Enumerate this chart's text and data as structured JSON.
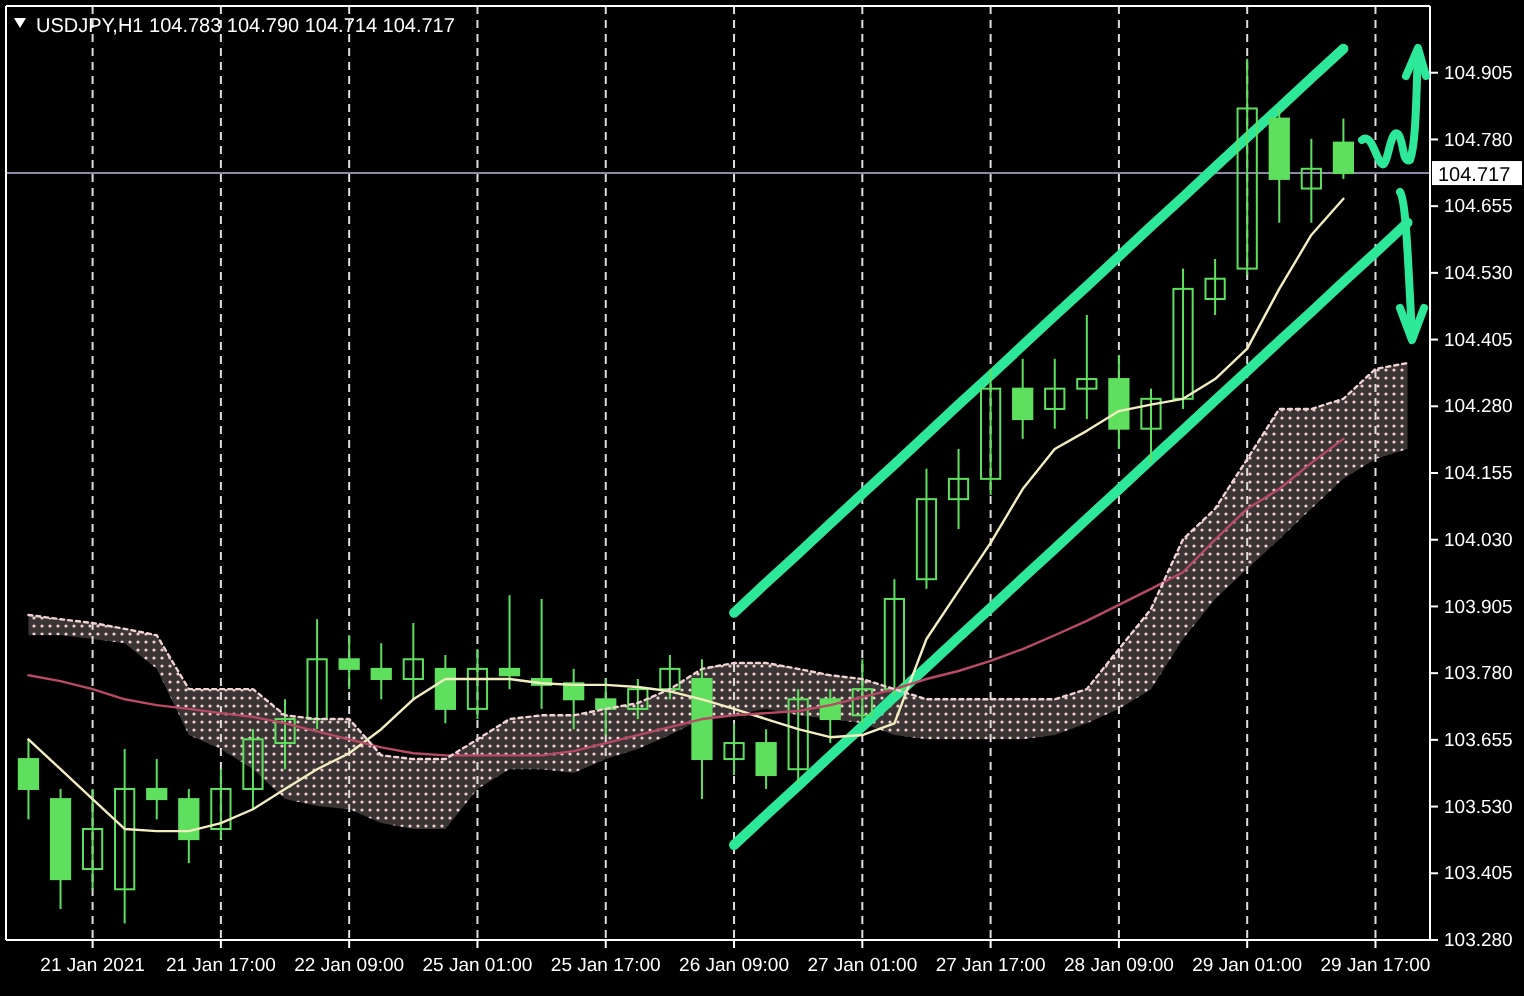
{
  "chart_data": {
    "type": "candlestick",
    "title": "USDJPY,H1 104.783 104.790 104.714 104.717",
    "categories": [
      null,
      null,
      "21 Jan 2021",
      null,
      null,
      null,
      "21 Jan 17:00",
      null,
      null,
      null,
      "22 Jan 09:00",
      null,
      null,
      null,
      "25 Jan 01:00",
      null,
      null,
      null,
      "25 Jan 17:00",
      null,
      null,
      null,
      "26 Jan 09:00",
      null,
      null,
      null,
      "27 Jan 01:00",
      null,
      null,
      null,
      "27 Jan 17:00",
      null,
      null,
      null,
      "28 Jan 09:00",
      null,
      null,
      null,
      "29 Jan 01:00",
      null,
      null,
      null,
      "29 Jan 17:00",
      null
    ],
    "color": "#5ee05e",
    "ohlc": [
      [
        103.619,
        103.656,
        103.506,
        103.563
      ],
      [
        103.544,
        103.563,
        103.338,
        103.394
      ],
      [
        103.413,
        103.563,
        103.375,
        103.488
      ],
      [
        103.375,
        103.638,
        103.311,
        103.563
      ],
      [
        103.563,
        103.619,
        103.506,
        103.544
      ],
      [
        103.544,
        103.563,
        103.424,
        103.469
      ],
      [
        103.488,
        103.6,
        103.469,
        103.563
      ],
      [
        103.563,
        103.675,
        103.525,
        103.656
      ],
      [
        103.649,
        103.731,
        103.6,
        103.694
      ],
      [
        103.694,
        103.881,
        103.675,
        103.806
      ],
      [
        103.806,
        103.851,
        103.75,
        103.788
      ],
      [
        103.788,
        103.836,
        103.731,
        103.769
      ],
      [
        103.769,
        103.874,
        103.731,
        103.806
      ],
      [
        103.788,
        103.814,
        103.686,
        103.713
      ],
      [
        103.713,
        103.825,
        103.694,
        103.788
      ],
      [
        103.788,
        103.926,
        103.75,
        103.776
      ],
      [
        103.769,
        103.919,
        103.713,
        103.758
      ],
      [
        103.761,
        103.788,
        103.675,
        103.731
      ],
      [
        103.731,
        103.769,
        103.664,
        103.713
      ],
      [
        103.713,
        103.769,
        103.694,
        103.75
      ],
      [
        103.75,
        103.814,
        103.731,
        103.788
      ],
      [
        103.769,
        103.806,
        103.544,
        103.619
      ],
      [
        103.619,
        103.686,
        103.589,
        103.649
      ],
      [
        103.649,
        103.675,
        103.563,
        103.589
      ],
      [
        103.6,
        103.75,
        103.574,
        103.731
      ],
      [
        103.731,
        103.75,
        103.649,
        103.694
      ],
      [
        103.701,
        103.806,
        103.686,
        103.75
      ],
      [
        103.75,
        103.956,
        103.739,
        103.919
      ],
      [
        103.956,
        104.163,
        103.938,
        104.106
      ],
      [
        104.106,
        104.2,
        104.05,
        104.144
      ],
      [
        104.144,
        104.35,
        104.114,
        104.313
      ],
      [
        104.313,
        104.369,
        104.219,
        104.256
      ],
      [
        104.275,
        104.369,
        104.238,
        104.313
      ],
      [
        104.313,
        104.451,
        104.256,
        104.331
      ],
      [
        104.331,
        104.376,
        104.2,
        104.238
      ],
      [
        104.238,
        104.313,
        104.174,
        104.294
      ],
      [
        104.294,
        104.538,
        104.275,
        104.5
      ],
      [
        104.481,
        104.556,
        104.451,
        104.519
      ],
      [
        104.538,
        104.931,
        104.526,
        104.838
      ],
      [
        104.819,
        104.838,
        104.624,
        104.706
      ],
      [
        104.688,
        104.781,
        104.624,
        104.725
      ],
      [
        104.774,
        104.819,
        104.706,
        104.717
      ],
      null,
      null
    ],
    "series": [
      {
        "type": "line",
        "color": "#f3eec0",
        "values": [
          103.656,
          103.6,
          103.544,
          103.488,
          103.484,
          103.484,
          103.499,
          103.525,
          103.563,
          103.6,
          103.63,
          103.675,
          103.731,
          103.769,
          103.769,
          103.769,
          103.761,
          103.758,
          103.758,
          103.754,
          103.746,
          103.731,
          103.713,
          103.694,
          103.675,
          103.66,
          103.664,
          103.686,
          103.844,
          103.934,
          104.024,
          104.125,
          104.2,
          104.234,
          104.271,
          104.283,
          104.294,
          104.331,
          104.388,
          104.5,
          104.601,
          104.669,
          null,
          null
        ]
      },
      {
        "type": "line",
        "color": "#b84a66",
        "values": [
          103.776,
          103.765,
          103.75,
          103.731,
          103.72,
          103.713,
          103.705,
          103.698,
          103.686,
          103.671,
          103.656,
          103.641,
          103.63,
          103.626,
          103.626,
          103.626,
          103.626,
          103.634,
          103.649,
          103.664,
          103.679,
          103.694,
          103.701,
          103.705,
          103.709,
          103.72,
          103.735,
          103.75,
          103.769,
          103.784,
          103.803,
          103.825,
          103.851,
          103.878,
          103.908,
          103.938,
          103.969,
          104.03,
          104.088,
          104.125,
          104.174,
          104.219,
          null,
          null
        ]
      },
      {
        "type": "line",
        "color": "#f0d2d2",
        "line_style": "dotted",
        "values": [
          103.889,
          103.881,
          103.874,
          103.863,
          103.851,
          103.75,
          103.75,
          103.75,
          103.701,
          103.694,
          103.694,
          103.626,
          103.619,
          103.619,
          103.656,
          103.694,
          103.701,
          103.701,
          103.713,
          103.724,
          103.75,
          103.788,
          103.799,
          103.799,
          103.788,
          103.776,
          103.769,
          103.75,
          103.731,
          103.731,
          103.731,
          103.731,
          103.731,
          103.75,
          103.825,
          103.9,
          104.031,
          104.088,
          104.181,
          104.275,
          104.275,
          104.294,
          104.35,
          104.361
        ],
        "lower": [
          103.851,
          103.851,
          103.844,
          103.836,
          103.788,
          103.664,
          103.638,
          103.6,
          103.544,
          103.531,
          103.525,
          103.499,
          103.488,
          103.488,
          103.563,
          103.6,
          103.6,
          103.593,
          103.619,
          103.638,
          103.664,
          103.694,
          103.701,
          103.713,
          103.701,
          103.694,
          103.686,
          103.664,
          103.656,
          103.656,
          103.656,
          103.656,
          103.664,
          103.686,
          103.713,
          103.75,
          103.844,
          103.919,
          103.975,
          104.031,
          104.088,
          104.144,
          104.181,
          104.2
        ],
        "upper": [
          103.889,
          103.881,
          103.874,
          103.863,
          103.851,
          103.75,
          103.75,
          103.75,
          103.701,
          103.694,
          103.694,
          103.626,
          103.619,
          103.619,
          103.656,
          103.694,
          103.701,
          103.701,
          103.713,
          103.724,
          103.75,
          103.788,
          103.799,
          103.799,
          103.788,
          103.776,
          103.769,
          103.75,
          103.731,
          103.731,
          103.731,
          103.731,
          103.731,
          103.75,
          103.825,
          103.9,
          104.031,
          104.088,
          104.181,
          104.275,
          104.275,
          104.294,
          104.35,
          104.361
        ]
      },
      {
        "type": "line",
        "color": "#2ee89a",
        "values": [
          null,
          null,
          null,
          null,
          null,
          null,
          null,
          null,
          null,
          null,
          null,
          null,
          null,
          null,
          null,
          null,
          null,
          null,
          null,
          null,
          null,
          null,
          103.893,
          103.949,
          104.004,
          104.06,
          104.116,
          104.171,
          104.227,
          104.283,
          104.338,
          104.394,
          104.45,
          104.505,
          104.561,
          104.617,
          104.672,
          104.728,
          104.784,
          104.839,
          104.895,
          104.95,
          null,
          null
        ]
      },
      {
        "type": "line",
        "color": "#2ee89a",
        "values": [
          null,
          null,
          null,
          null,
          null,
          null,
          null,
          null,
          null,
          null,
          null,
          null,
          null,
          null,
          null,
          null,
          null,
          null,
          null,
          null,
          null,
          null,
          103.458,
          103.514,
          103.569,
          103.625,
          103.68,
          103.736,
          103.791,
          103.847,
          103.902,
          103.958,
          104.013,
          104.069,
          104.124,
          104.18,
          104.235,
          104.291,
          104.346,
          104.402,
          104.457,
          104.513,
          104.568,
          104.624
        ]
      }
    ],
    "ylim": [
      103.28,
      105.03
    ],
    "yticks": [
      {
        "value": 103.28,
        "label": "103.280"
      },
      103.405,
      {
        "value": 103.53,
        "label": "103.530"
      },
      103.655,
      {
        "value": 103.78,
        "label": "103.780"
      },
      103.905,
      {
        "value": 104.03,
        "label": "104.030"
      },
      104.155,
      {
        "value": 104.28,
        "label": "104.280"
      },
      104.405,
      {
        "value": 104.53,
        "label": "104.530"
      },
      104.655,
      {
        "value": 104.78,
        "label": "104.780"
      },
      104.905
    ],
    "ref_lines": [
      {
        "axis": "y",
        "value": 104.717,
        "label": "104.717",
        "color": "#8a8aa6"
      }
    ],
    "grid": "x"
  }
}
